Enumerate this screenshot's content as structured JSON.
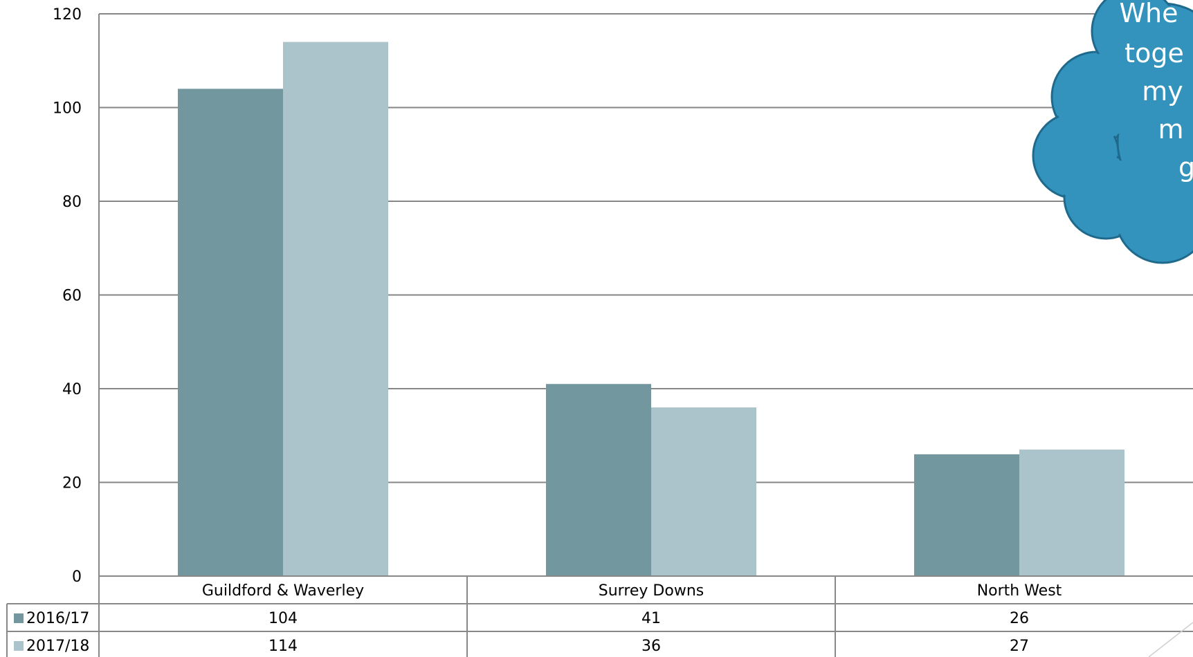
{
  "chart_data": {
    "type": "bar",
    "categories": [
      "Guildford & Waverley",
      "Surrey Downs",
      "North West"
    ],
    "series": [
      {
        "name": "2016/17",
        "values": [
          104,
          41,
          26
        ],
        "color": "#72979e"
      },
      {
        "name": "2017/18",
        "values": [
          114,
          36,
          27
        ],
        "color": "#abc3ca"
      }
    ],
    "ylim": [
      0,
      120
    ],
    "yticks": [
      "0",
      "20",
      "40",
      "60",
      "80",
      "100",
      "120"
    ],
    "grid": true,
    "legend": "data-table",
    "gridline_color": "#868686"
  },
  "callout": {
    "lines": [
      "Whe",
      "toge",
      "my",
      "m",
      "g"
    ],
    "fill": "#3393bd",
    "stroke": "#1f6a8c"
  }
}
